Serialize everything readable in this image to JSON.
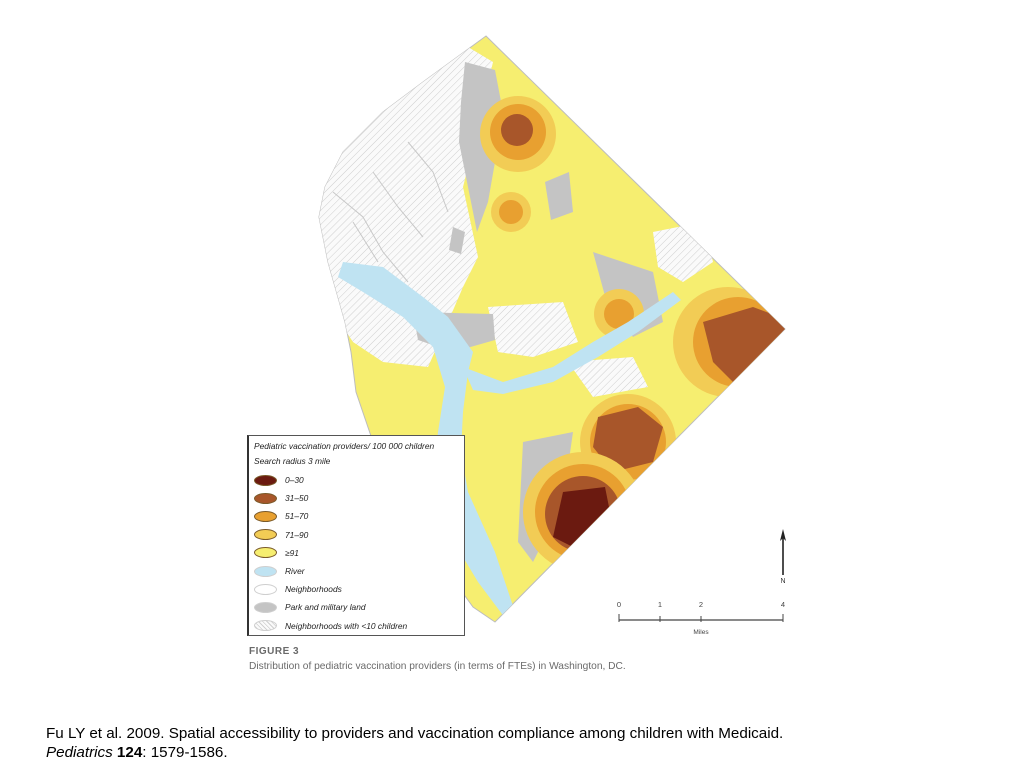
{
  "figure": {
    "label": "FIGURE 3",
    "caption": "Distribution of pediatric vaccination providers (in terms of FTEs) in Washington, DC."
  },
  "legend": {
    "title": "Pediatric vaccination providers/ 100 000 children",
    "subtitle": "Search radius 3 mile",
    "items": [
      {
        "label": "0–30",
        "color": "#6b1a10"
      },
      {
        "label": "31–50",
        "color": "#a8562a"
      },
      {
        "label": "51–70",
        "color": "#e8a030"
      },
      {
        "label": "71–90",
        "color": "#f2cc55"
      },
      {
        "label": "≥91",
        "color": "#f6ee70"
      },
      {
        "label": "River",
        "color": "#bfe3f2"
      },
      {
        "label": "Neighborhoods",
        "color": "#ffffff"
      },
      {
        "label": "Park and military land",
        "color": "#c4c4c4"
      },
      {
        "label": "Neighborhoods with <10 children",
        "color": "hatch"
      }
    ]
  },
  "scale_bar": {
    "ticks": [
      "0",
      "1",
      "2",
      "4"
    ],
    "units": "Miles"
  },
  "north_arrow": {
    "label": "N",
    "icon": "north-arrow-icon"
  },
  "citation": {
    "line1": "Fu LY et al. 2009. Spatial accessibility to providers and vaccination compliance among children with Medicaid.",
    "journal": "Pediatrics",
    "volume": "124",
    "pages": ": 1579-1586."
  }
}
